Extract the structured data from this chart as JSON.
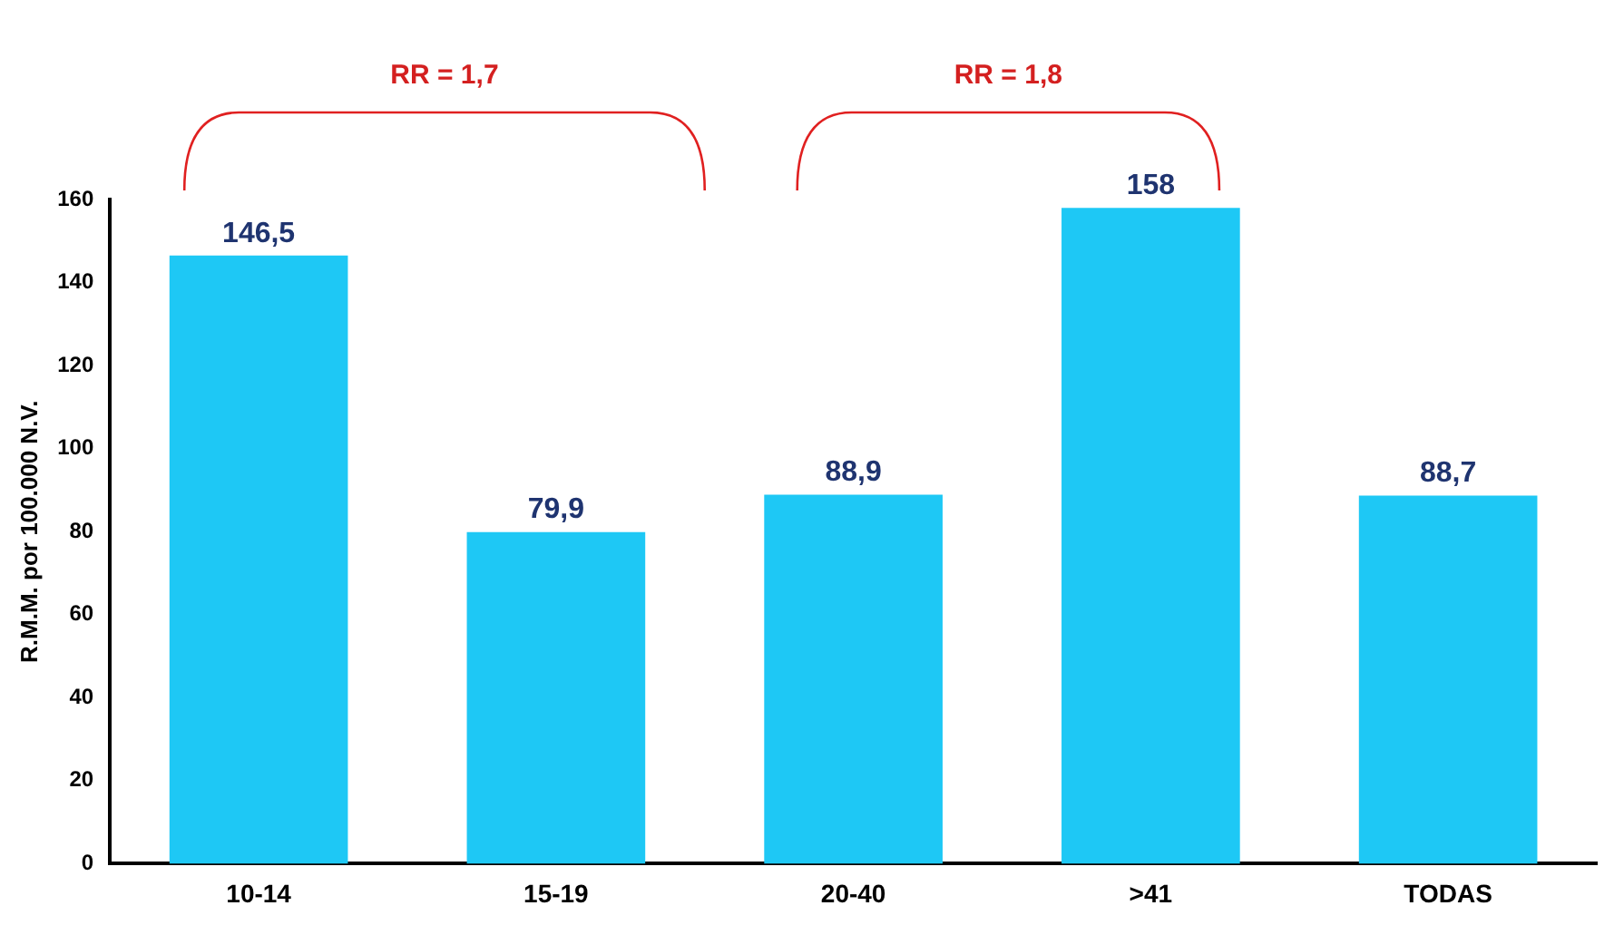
{
  "chart_data": {
    "type": "bar",
    "categories": [
      "10-14",
      "15-19",
      "20-40",
      ">41",
      "TODAS"
    ],
    "values": [
      146.5,
      79.9,
      88.9,
      158,
      88.7
    ],
    "value_labels": [
      "146,5",
      "79,9",
      "88,9",
      "158",
      "88,7"
    ],
    "color": "#1ec8f5",
    "ylabel": "R.M.M. por 100.000 N.V.",
    "ylim": [
      0,
      160
    ],
    "yticks": [
      0,
      20,
      40,
      60,
      80,
      100,
      120,
      140,
      160
    ],
    "grid": false,
    "legend": false,
    "annotations": [
      "RR = 1,7",
      "RR = 1,8"
    ]
  }
}
